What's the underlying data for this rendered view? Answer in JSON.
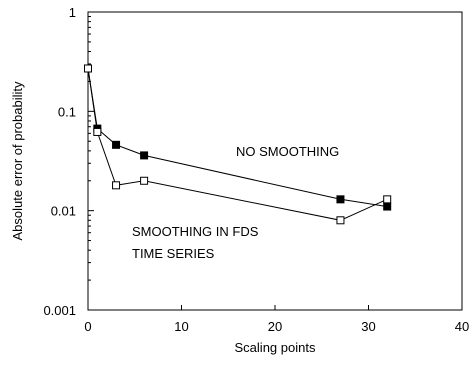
{
  "chart_data": {
    "type": "line",
    "title": "",
    "xlabel": "Scaling points",
    "ylabel": "Absolute error of probability",
    "xlim": [
      0,
      40
    ],
    "ylim": [
      0.001,
      1
    ],
    "yscale": "log",
    "grid": false,
    "xticks": [
      0,
      10,
      20,
      30,
      40
    ],
    "xtick_labels": [
      "0",
      "10",
      "20",
      "30",
      "40"
    ],
    "yticks": [
      0.001,
      0.01,
      0.1,
      1
    ],
    "ytick_labels": [
      "0.001",
      "0.01",
      "0.1",
      "1"
    ],
    "series": [
      {
        "marker": "filled-square",
        "x": [
          0,
          1,
          3,
          6,
          27,
          32
        ],
        "y": [
          0.27,
          0.067,
          0.046,
          0.036,
          0.013,
          0.011
        ]
      },
      {
        "marker": "open-square",
        "x": [
          0,
          1,
          3,
          6,
          27,
          32
        ],
        "y": [
          0.27,
          0.062,
          0.018,
          0.02,
          0.008,
          0.013
        ]
      }
    ],
    "annotations": [
      {
        "lines": [
          "NO SMOOTHING"
        ]
      },
      {
        "lines": [
          "SMOOTHING IN FDS",
          "TIME SERIES"
        ]
      }
    ]
  }
}
